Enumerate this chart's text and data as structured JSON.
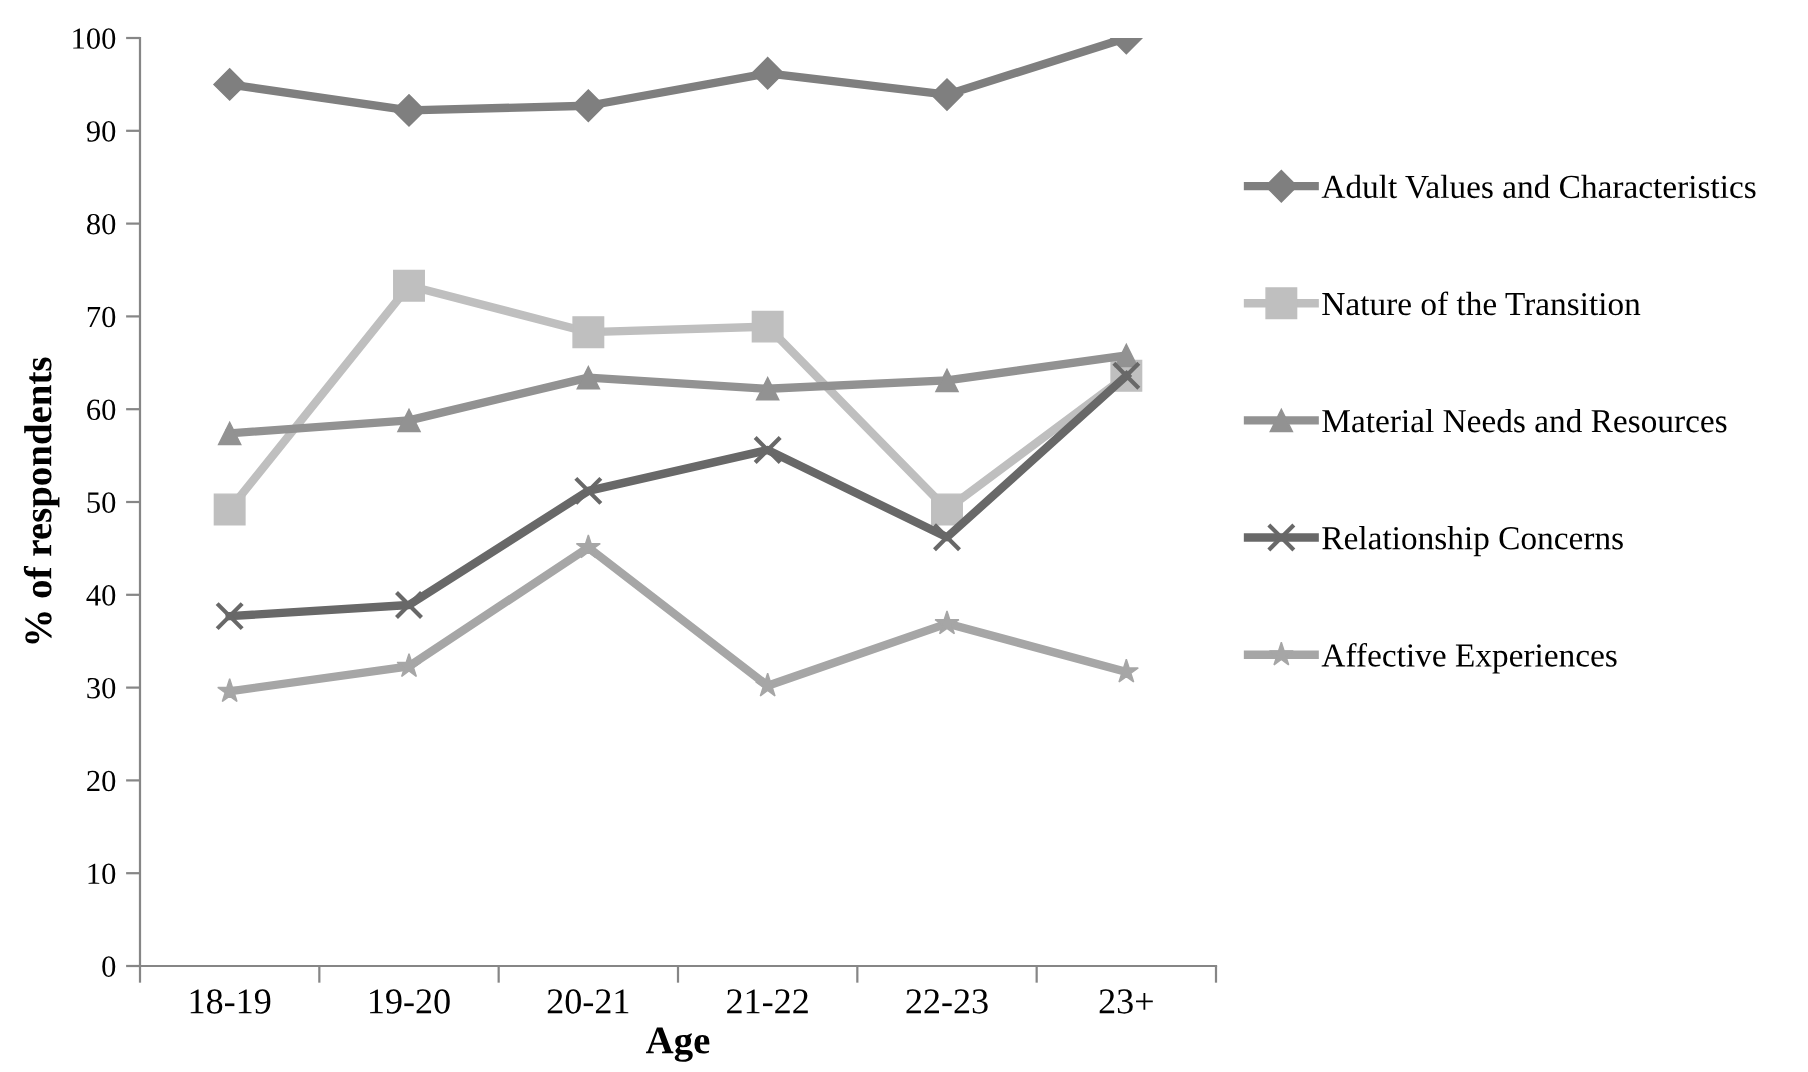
{
  "chart_data": {
    "type": "line",
    "xlabel": "Age",
    "ylabel": "% of respondents",
    "categories": [
      "18-19",
      "19-20",
      "20-21",
      "21-22",
      "22-23",
      "23+"
    ],
    "ylim": [
      0,
      100
    ],
    "yticks": [
      0,
      10,
      20,
      30,
      40,
      50,
      60,
      70,
      80,
      90,
      100
    ],
    "grid": false,
    "legend": "right",
    "line_style": "solid",
    "series": [
      {
        "name": "Adult Values and Characteristics",
        "color": "#7f7f7f",
        "marker": "diamond",
        "values": [
          95,
          92.2,
          92.7,
          96.2,
          93.9,
          100
        ]
      },
      {
        "name": "Nature of the Transition",
        "color": "#bfbfbf",
        "marker": "square",
        "values": [
          49.2,
          73.3,
          68.3,
          68.9,
          49.2,
          63.6
        ]
      },
      {
        "name": "Material Needs and Resources",
        "color": "#929292",
        "marker": "triangle",
        "values": [
          57.4,
          58.8,
          63.4,
          62.2,
          63.1,
          65.8
        ]
      },
      {
        "name": "Relationship Concerns",
        "color": "#686868",
        "marker": "cross",
        "values": [
          37.7,
          38.9,
          51.2,
          55.6,
          46.2,
          63.6
        ]
      },
      {
        "name": "Affective Experiences",
        "color": "#a6a6a6",
        "marker": "star",
        "values": [
          29.6,
          32.3,
          45.1,
          30.2,
          36.9,
          31.7
        ]
      }
    ]
  }
}
